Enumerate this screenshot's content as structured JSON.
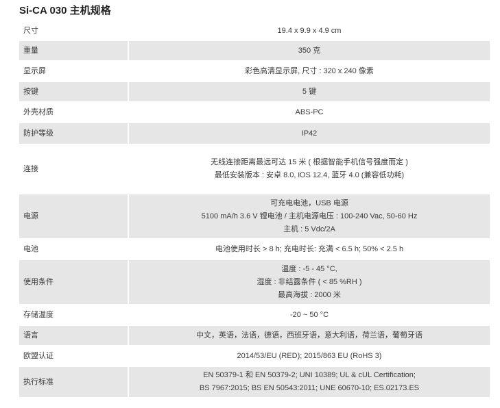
{
  "title": "Si-CA 030  主机规格",
  "rows": [
    {
      "label": "尺寸",
      "lines": [
        "19.4 x 9.9 x 4.9 cm"
      ]
    },
    {
      "label": "重量",
      "lines": [
        "350 克"
      ]
    },
    {
      "label": "显示屏",
      "lines": [
        "彩色高清显示屏, 尺寸 : 320 x 240 像素"
      ]
    },
    {
      "label": "按键",
      "lines": [
        "5 键"
      ]
    },
    {
      "label": "外壳材质",
      "lines": [
        "ABS-PC"
      ]
    },
    {
      "label": "防护等级",
      "lines": [
        "IP42"
      ]
    },
    {
      "label": "连接",
      "lines": [
        "无线连接距离最远可达 15 米 ( 根据智能手机信号强度而定 )",
        "最低安装版本 : 安卓 8.0,  iOS 12.4,  蓝牙 4.0 (兼容低功耗)"
      ]
    },
    {
      "label": "电源",
      "lines": [
        "可充电电池，USB 电源",
        "5100 mA/h 3.6 V 锂电池 / 主机电源电压 : 100-240 Vac, 50-60 Hz",
        "主机 : 5 Vdc/2A"
      ]
    },
    {
      "label": "电池",
      "lines": [
        "电池使用时长 > 8 h;   充电时长:  充满 < 6.5 h;  50% < 2.5 h"
      ]
    },
    {
      "label": "使用条件",
      "lines": [
        "温度 :  -5 - 45 °C,",
        "湿度 : 非结露条件 ( < 85 %RH )",
        "最高海拔 : 2000 米"
      ]
    },
    {
      "label": "存储温度",
      "lines": [
        "-20 ~ 50 °C"
      ]
    },
    {
      "label": "语言",
      "lines": [
        "中文，英语，法语，德语，西班牙语，意大利语，荷兰语，葡萄牙语"
      ]
    },
    {
      "label": "欧盟认证",
      "lines": [
        "2014/53/EU (RED); 2015/863 EU (RoHS 3)"
      ]
    },
    {
      "label": "执行标准",
      "lines": [
        "EN 50379-1 和 EN 50379-2; UNI 10389; UL & cUL Certification;",
        "BS 7967:2015; BS EN 50543:2011; UNE 60670-10; ES.02173.ES"
      ]
    }
  ]
}
